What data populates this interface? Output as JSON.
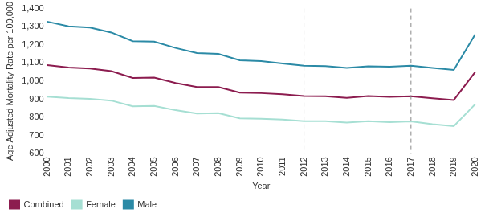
{
  "chart_data": {
    "type": "line",
    "x_label": "Year",
    "y_label": "Age Adjusted Mortality Rate per 100,000",
    "categories": [
      "2000",
      "2001",
      "2002",
      "2003",
      "2004",
      "2005",
      "2006",
      "2007",
      "2008",
      "2009",
      "2010",
      "2011",
      "2012",
      "2013",
      "2014",
      "2015",
      "2016",
      "2017",
      "2018",
      "2019",
      "2020"
    ],
    "series": [
      {
        "name": "Combined",
        "color": "#8c1c4f",
        "values": [
          1088,
          1075,
          1070,
          1055,
          1018,
          1020,
          990,
          968,
          968,
          937,
          934,
          928,
          918,
          917,
          908,
          918,
          913,
          917,
          906,
          896,
          1050
        ]
      },
      {
        "name": "Female",
        "color": "#a6dfd3",
        "values": [
          915,
          907,
          903,
          893,
          862,
          864,
          840,
          822,
          824,
          795,
          793,
          789,
          780,
          780,
          772,
          780,
          774,
          778,
          763,
          752,
          873
        ]
      },
      {
        "name": "Male",
        "color": "#2b8aa6",
        "values": [
          1328,
          1302,
          1295,
          1268,
          1220,
          1218,
          1183,
          1155,
          1150,
          1115,
          1110,
          1097,
          1085,
          1083,
          1073,
          1082,
          1080,
          1085,
          1073,
          1062,
          1258
        ]
      }
    ],
    "vlines": [
      "2012",
      "2017"
    ],
    "ylim": [
      600,
      1400
    ],
    "yticks": [
      600,
      700,
      800,
      900,
      1000,
      1100,
      1200,
      1300,
      1400
    ],
    "grid": false,
    "legend": "bottom-left"
  }
}
